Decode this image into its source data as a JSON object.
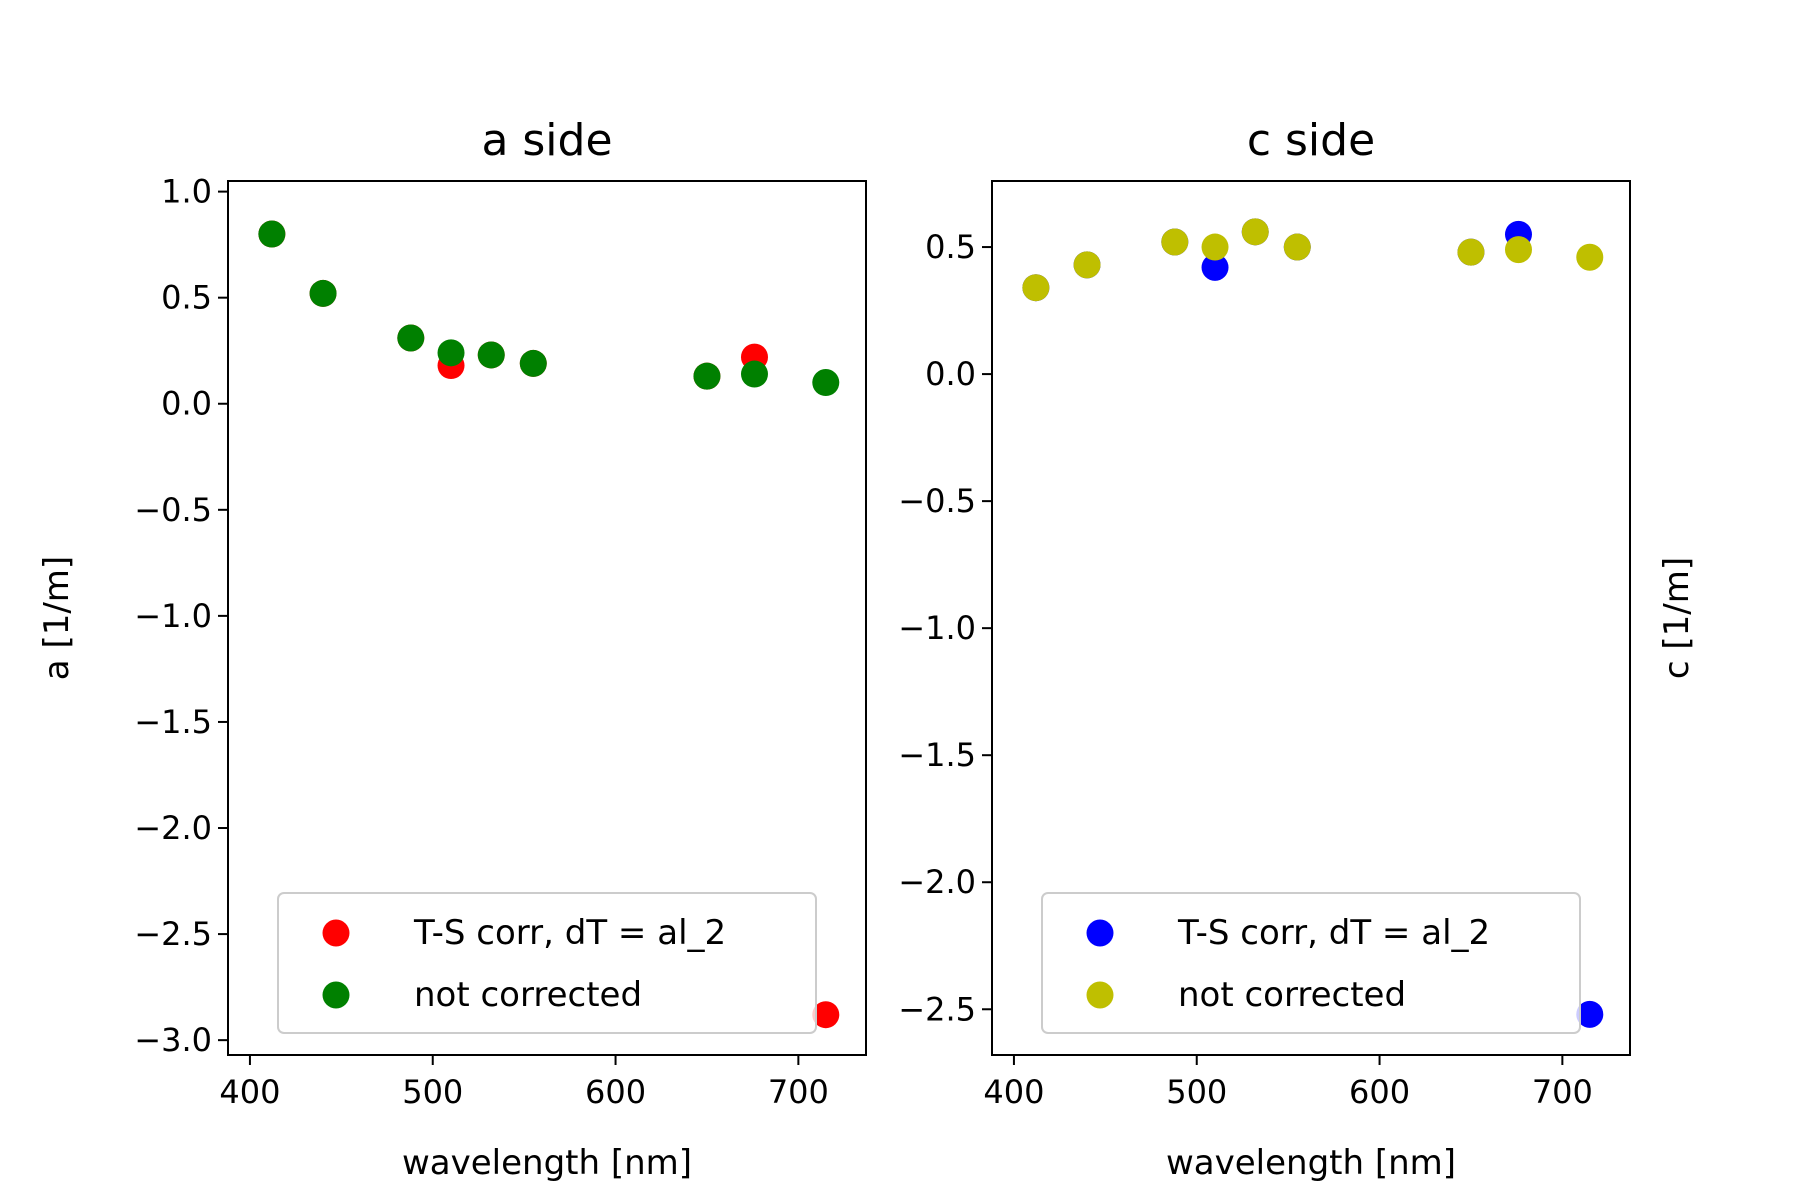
{
  "chart_data": [
    {
      "type": "scatter",
      "title": "a side",
      "xlabel": "wavelength [nm]",
      "ylabel": "a [1/m]",
      "ylabel_side": "left",
      "xlim": [
        388,
        737
      ],
      "ylim": [
        -3.07,
        1.05
      ],
      "xticks": [
        400,
        500,
        600,
        700
      ],
      "xtick_labels": [
        "400",
        "500",
        "600",
        "700"
      ],
      "yticks": [
        1.0,
        0.5,
        0.0,
        -0.5,
        -1.0,
        -1.5,
        -2.0,
        -2.5,
        -3.0
      ],
      "ytick_labels": [
        "1.0",
        "0.5",
        "0.0",
        "−0.5",
        "−1.0",
        "−1.5",
        "−2.0",
        "−2.5",
        "−3.0"
      ],
      "grid": false,
      "legend_position": "lower-center",
      "series": [
        {
          "name": "T-S corr, dT = al_2",
          "color": "#ff0000",
          "x": [
            412,
            440,
            488,
            510,
            532,
            555,
            650,
            676,
            715
          ],
          "y": [
            0.8,
            0.52,
            0.31,
            0.18,
            0.23,
            0.19,
            0.13,
            0.22,
            -2.88
          ]
        },
        {
          "name": "not corrected",
          "color": "#008000",
          "x": [
            412,
            440,
            488,
            510,
            532,
            555,
            650,
            676,
            715
          ],
          "y": [
            0.8,
            0.52,
            0.31,
            0.24,
            0.23,
            0.19,
            0.13,
            0.14,
            0.1
          ]
        }
      ]
    },
    {
      "type": "scatter",
      "title": "c side",
      "xlabel": "wavelength [nm]",
      "ylabel": "c [1/m]",
      "ylabel_side": "right",
      "xlim": [
        388,
        737
      ],
      "ylim": [
        -2.68,
        0.76
      ],
      "xticks": [
        400,
        500,
        600,
        700
      ],
      "xtick_labels": [
        "400",
        "500",
        "600",
        "700"
      ],
      "yticks": [
        0.5,
        0.0,
        -0.5,
        -1.0,
        -1.5,
        -2.0,
        -2.5
      ],
      "ytick_labels": [
        "0.5",
        "0.0",
        "−0.5",
        "−1.0",
        "−1.5",
        "−2.0",
        "−2.5"
      ],
      "grid": false,
      "legend_position": "lower-center",
      "series": [
        {
          "name": "T-S corr, dT = al_2",
          "color": "#0000ff",
          "x": [
            412,
            440,
            488,
            510,
            532,
            555,
            650,
            676,
            715
          ],
          "y": [
            0.34,
            0.43,
            0.52,
            0.42,
            0.56,
            0.5,
            0.48,
            0.55,
            -2.52
          ]
        },
        {
          "name": "not corrected",
          "color": "#bfbf00",
          "x": [
            412,
            440,
            488,
            510,
            532,
            555,
            650,
            676,
            715
          ],
          "y": [
            0.34,
            0.43,
            0.52,
            0.5,
            0.56,
            0.5,
            0.48,
            0.49,
            0.46
          ]
        }
      ]
    }
  ]
}
